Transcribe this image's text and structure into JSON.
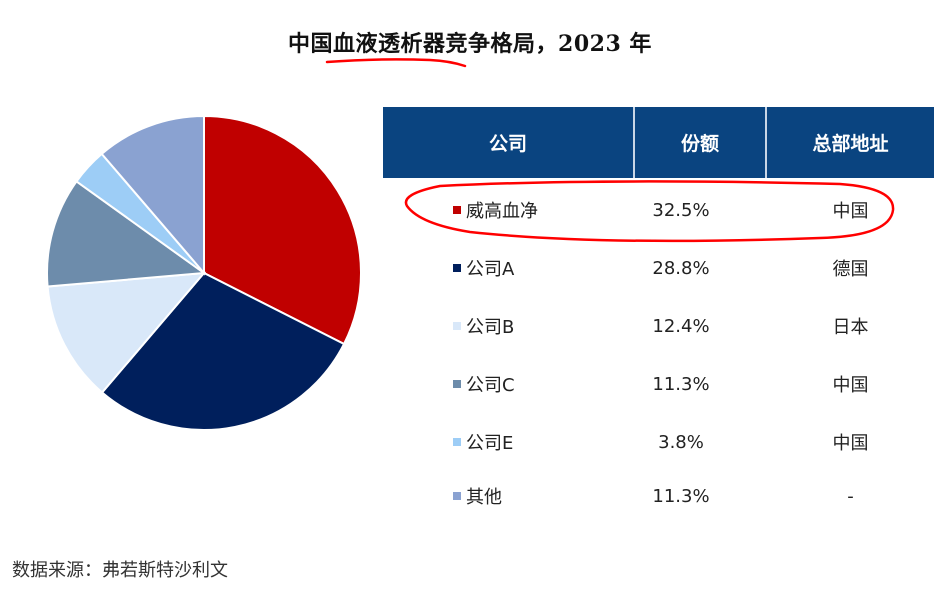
{
  "title": "中国血液透析器竞争格局，2023 年",
  "table": {
    "headers": [
      "公司",
      "份额",
      "总部地址"
    ],
    "rows": [
      {
        "name": "威高血净",
        "share": "32.5%",
        "hq": "中国",
        "color": "#c00000"
      },
      {
        "name": "公司A",
        "share": "28.8%",
        "hq": "德国",
        "color": "#001f5c"
      },
      {
        "name": "公司B",
        "share": "12.4%",
        "hq": "日本",
        "color": "#d9e8f9"
      },
      {
        "name": "公司C",
        "share": "11.3%",
        "hq": "中国",
        "color": "#6d8cab"
      },
      {
        "name": "公司E",
        "share": "3.8%",
        "hq": "中国",
        "color": "#9dcdf6"
      },
      {
        "name": "其他",
        "share": "11.3%",
        "hq": "-",
        "color": "#8aa2d1"
      }
    ]
  },
  "source": "数据来源：弗若斯特沙利文",
  "colors": {
    "header_bg": "#0a4480",
    "annotation": "#ff0000"
  },
  "chart_data": {
    "type": "pie",
    "title": "中国血液透析器竞争格局，2023 年",
    "categories": [
      "威高血净",
      "公司A",
      "公司B",
      "公司C",
      "公司E",
      "其他"
    ],
    "values": [
      32.5,
      28.8,
      12.4,
      11.3,
      3.8,
      11.3
    ],
    "unit": "%",
    "colors": [
      "#c00000",
      "#001f5c",
      "#d9e8f9",
      "#6d8cab",
      "#9dcdf6",
      "#8aa2d1"
    ],
    "start_angle": "12 o'clock, clockwise",
    "legend_position": "right (table)"
  }
}
